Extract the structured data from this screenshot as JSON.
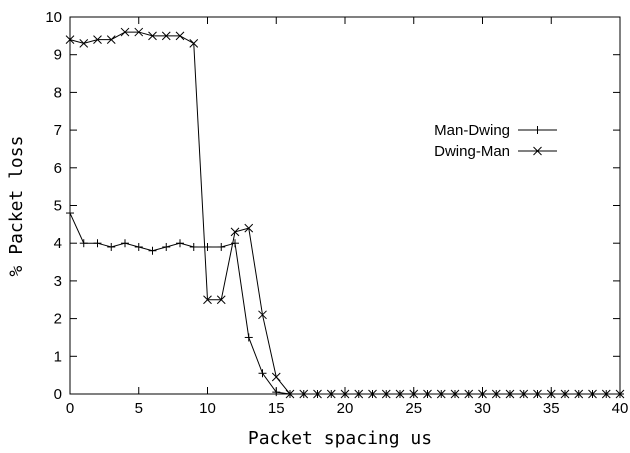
{
  "chart_data": {
    "type": "line",
    "title": "",
    "xlabel": "Packet spacing us",
    "ylabel": "% Packet loss",
    "xlim": [
      0,
      40
    ],
    "ylim": [
      0,
      10
    ],
    "xticks": [
      0,
      5,
      10,
      15,
      20,
      25,
      30,
      35,
      40
    ],
    "yticks": [
      0,
      1,
      2,
      3,
      4,
      5,
      6,
      7,
      8,
      9,
      10
    ],
    "grid": false,
    "legend_position": "right",
    "series": [
      {
        "name": "Man-Dwing",
        "marker": "plus",
        "x": [
          0,
          1,
          2,
          3,
          4,
          5,
          6,
          7,
          8,
          9,
          10,
          11,
          12,
          13,
          14,
          15,
          16,
          17,
          18,
          19,
          20,
          21,
          22,
          23,
          24,
          25,
          26,
          27,
          28,
          29,
          30,
          31,
          32,
          33,
          34,
          35,
          36,
          37,
          38,
          39,
          40
        ],
        "y": [
          4.8,
          4.0,
          4.0,
          3.9,
          4.0,
          3.9,
          3.8,
          3.9,
          4.0,
          3.9,
          3.9,
          3.9,
          4.0,
          1.5,
          0.55,
          0.05,
          0,
          0,
          0,
          0,
          0,
          0,
          0,
          0,
          0,
          0,
          0,
          0,
          0,
          0,
          0,
          0,
          0,
          0,
          0,
          0,
          0,
          0,
          0,
          0,
          0
        ]
      },
      {
        "name": "Dwing-Man",
        "marker": "cross",
        "x": [
          0,
          1,
          2,
          3,
          4,
          5,
          6,
          7,
          8,
          9,
          10,
          11,
          12,
          13,
          14,
          15,
          16,
          17,
          18,
          19,
          20,
          21,
          22,
          23,
          24,
          25,
          26,
          27,
          28,
          29,
          30,
          31,
          32,
          33,
          34,
          35,
          36,
          37,
          38,
          39,
          40
        ],
        "y": [
          9.4,
          9.3,
          9.4,
          9.4,
          9.6,
          9.6,
          9.5,
          9.5,
          9.5,
          9.3,
          2.5,
          2.5,
          4.3,
          4.4,
          2.1,
          0.45,
          0,
          0,
          0,
          0,
          0,
          0,
          0,
          0,
          0,
          0,
          0,
          0,
          0,
          0,
          0,
          0,
          0,
          0,
          0,
          0,
          0,
          0,
          0,
          0,
          0
        ]
      }
    ]
  }
}
